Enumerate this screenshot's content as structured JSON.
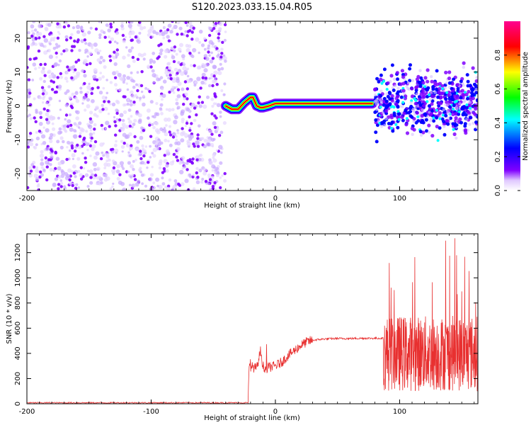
{
  "title": "S120.2023.033.15.04.R05",
  "chart_data": [
    {
      "type": "heatmap",
      "xlabel": "Height of straight line (km)",
      "ylabel": "Frequency (Hz)",
      "xlim": [
        -200,
        163
      ],
      "ylim": [
        -25,
        25
      ],
      "xticks": [
        -200,
        -100,
        0,
        100
      ],
      "yticks": [
        -20,
        -10,
        0,
        10,
        20
      ],
      "colorbar": {
        "label": "Normalized spectral amplitude",
        "range": [
          0,
          1
        ],
        "ticks": [
          "0.0",
          "0.2",
          "0.4",
          "0.6",
          "0.8"
        ],
        "colormap": [
          "#ffffff",
          "#8000ff",
          "#0000ff",
          "#00ffff",
          "#00ff00",
          "#ffff00",
          "#ff0000",
          "#ff00a0"
        ]
      },
      "features": [
        {
          "x_range": [
            -200,
            -40
          ],
          "description": "diffuse noise across all frequencies",
          "amplitude": 0.1
        },
        {
          "x": [
            -40,
            -35,
            -30,
            -25,
            -20,
            -18,
            -15,
            -12,
            -10,
            -5,
            0,
            20,
            40,
            60,
            78
          ],
          "freq": [
            0,
            -1,
            -1,
            1,
            2.5,
            2.5,
            0,
            -0.5,
            -0.5,
            0,
            0.7,
            0.7,
            0.7,
            0.7,
            0.7
          ],
          "amplitude": 0.85
        },
        {
          "x_range": [
            80,
            163
          ],
          "freq_center": 1,
          "freq_spread": 8,
          "description": "scattered strong returns",
          "amplitude": 0.25
        }
      ]
    },
    {
      "type": "line",
      "xlabel": "Height of straight line (km)",
      "ylabel": "SNR (10 * v/v)",
      "xlim": [
        -200,
        163
      ],
      "ylim": [
        0,
        1350
      ],
      "xticks": [
        -200,
        -100,
        0,
        100
      ],
      "yticks": [
        0,
        200,
        400,
        600,
        800,
        1000,
        1200
      ],
      "color": "#e83030",
      "segments": [
        {
          "x_range": [
            -200,
            -22
          ],
          "mean": 8,
          "noise": 5
        },
        {
          "x": [
            -22,
            -21,
            -15,
            -12,
            -10,
            -8,
            -5,
            0,
            5,
            10,
            15,
            20,
            25,
            30,
            40,
            50,
            60,
            70,
            80,
            87
          ],
          "y": [
            20,
            300,
            280,
            420,
            300,
            280,
            290,
            300,
            330,
            380,
            420,
            460,
            490,
            505,
            515,
            518,
            518,
            520,
            520,
            520
          ],
          "noise": 40
        },
        {
          "x_range": [
            87,
            163
          ],
          "mean": 400,
          "noise": 300,
          "peak": 1350
        }
      ]
    }
  ]
}
